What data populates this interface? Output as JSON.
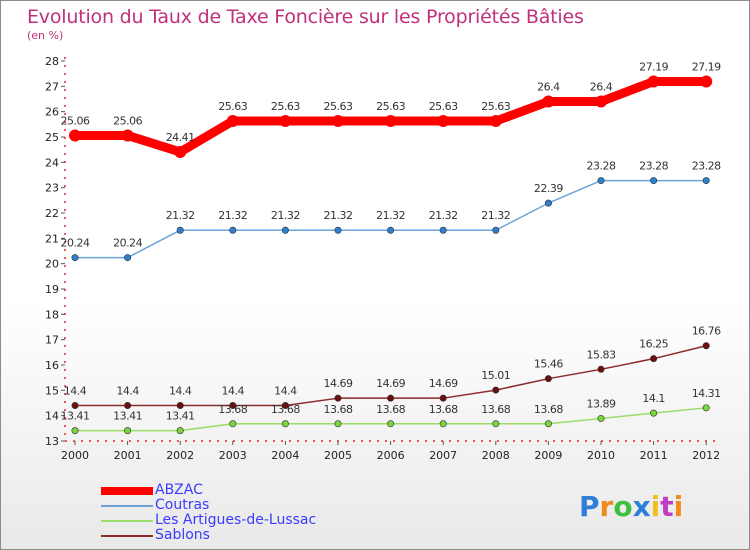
{
  "header": {
    "title": "Evolution du Taux de Taxe Foncière sur les Propriétés Bâties",
    "subtitle": "(en %)"
  },
  "chart_data": {
    "type": "line",
    "title": "Evolution du Taux de Taxe Foncière sur les Propriétés Bâties",
    "ylabel": "(en %)",
    "xlabel": "",
    "ylim": [
      13,
      28
    ],
    "grid": false,
    "categories": [
      "2000",
      "2001",
      "2002",
      "2003",
      "2004",
      "2005",
      "2006",
      "2007",
      "2008",
      "2009",
      "2010",
      "2011",
      "2012"
    ],
    "y_ticks": [
      "13",
      "14",
      "15",
      "16",
      "17",
      "18",
      "19",
      "20",
      "21",
      "22",
      "23",
      "24",
      "25",
      "26",
      "27",
      "28"
    ],
    "series": [
      {
        "name": "ABZAC",
        "color": "#ff0000",
        "marker_color": "#ff0000",
        "thick": true,
        "values": [
          25.06,
          25.06,
          24.41,
          25.63,
          25.63,
          25.63,
          25.63,
          25.63,
          25.63,
          26.4,
          26.4,
          27.19,
          27.19
        ],
        "labels": [
          "25.06",
          "25.06",
          "24.41",
          "25.63",
          "25.63",
          "25.63",
          "25.63",
          "25.63",
          "25.63",
          "26.4",
          "26.4",
          "27.19",
          "27.19"
        ]
      },
      {
        "name": "Coutras",
        "color": "#6ba3d8",
        "marker_color": "#2f7fcf",
        "thick": false,
        "values": [
          20.24,
          20.24,
          21.32,
          21.32,
          21.32,
          21.32,
          21.32,
          21.32,
          21.32,
          22.39,
          23.28,
          23.28,
          23.28
        ],
        "labels": [
          "20.24",
          "20.24",
          "21.32",
          "21.32",
          "21.32",
          "21.32",
          "21.32",
          "21.32",
          "21.32",
          "22.39",
          "23.28",
          "23.28",
          "23.28"
        ]
      },
      {
        "name": "Les Artigues-de-Lussac",
        "color": "#99dd66",
        "marker_color": "#7ad43e",
        "thick": false,
        "values": [
          13.41,
          13.41,
          13.41,
          13.68,
          13.68,
          13.68,
          13.68,
          13.68,
          13.68,
          13.68,
          13.89,
          14.1,
          14.31
        ],
        "labels": [
          "13.41",
          "13.41",
          "13.41",
          "13.68",
          "13.68",
          "13.68",
          "13.68",
          "13.68",
          "13.68",
          "13.68",
          "13.89",
          "14.1",
          "14.31"
        ]
      },
      {
        "name": "Sablons",
        "color": "#8b2b2b",
        "marker_color": "#6b1010",
        "thick": false,
        "values": [
          14.4,
          14.4,
          14.4,
          14.4,
          14.4,
          14.69,
          14.69,
          14.69,
          15.01,
          15.46,
          15.83,
          16.25,
          16.76
        ],
        "labels": [
          "14.4",
          "14.4",
          "14.4",
          "14.4",
          "14.4",
          "14.69",
          "14.69",
          "14.69",
          "15.01",
          "15.46",
          "15.83",
          "16.25",
          "16.76"
        ]
      }
    ],
    "legend_position": "bottom-left"
  },
  "legend": {
    "items": [
      {
        "label": "ABZAC",
        "color": "#ff0000"
      },
      {
        "label": "Coutras",
        "color": "#6ba3d8"
      },
      {
        "label": "Les Artigues-de-Lussac",
        "color": "#99dd66"
      },
      {
        "label": "Sablons",
        "color": "#8b2b2b"
      }
    ]
  },
  "brand": {
    "letters": [
      "P",
      "r",
      "o",
      "x",
      "i",
      "t",
      "i"
    ],
    "colors": [
      "#2e7fd8",
      "#f08a1c",
      "#3fbf3f",
      "#2e7fd8",
      "#f0c020",
      "#c03fc0",
      "#f08a1c"
    ]
  }
}
